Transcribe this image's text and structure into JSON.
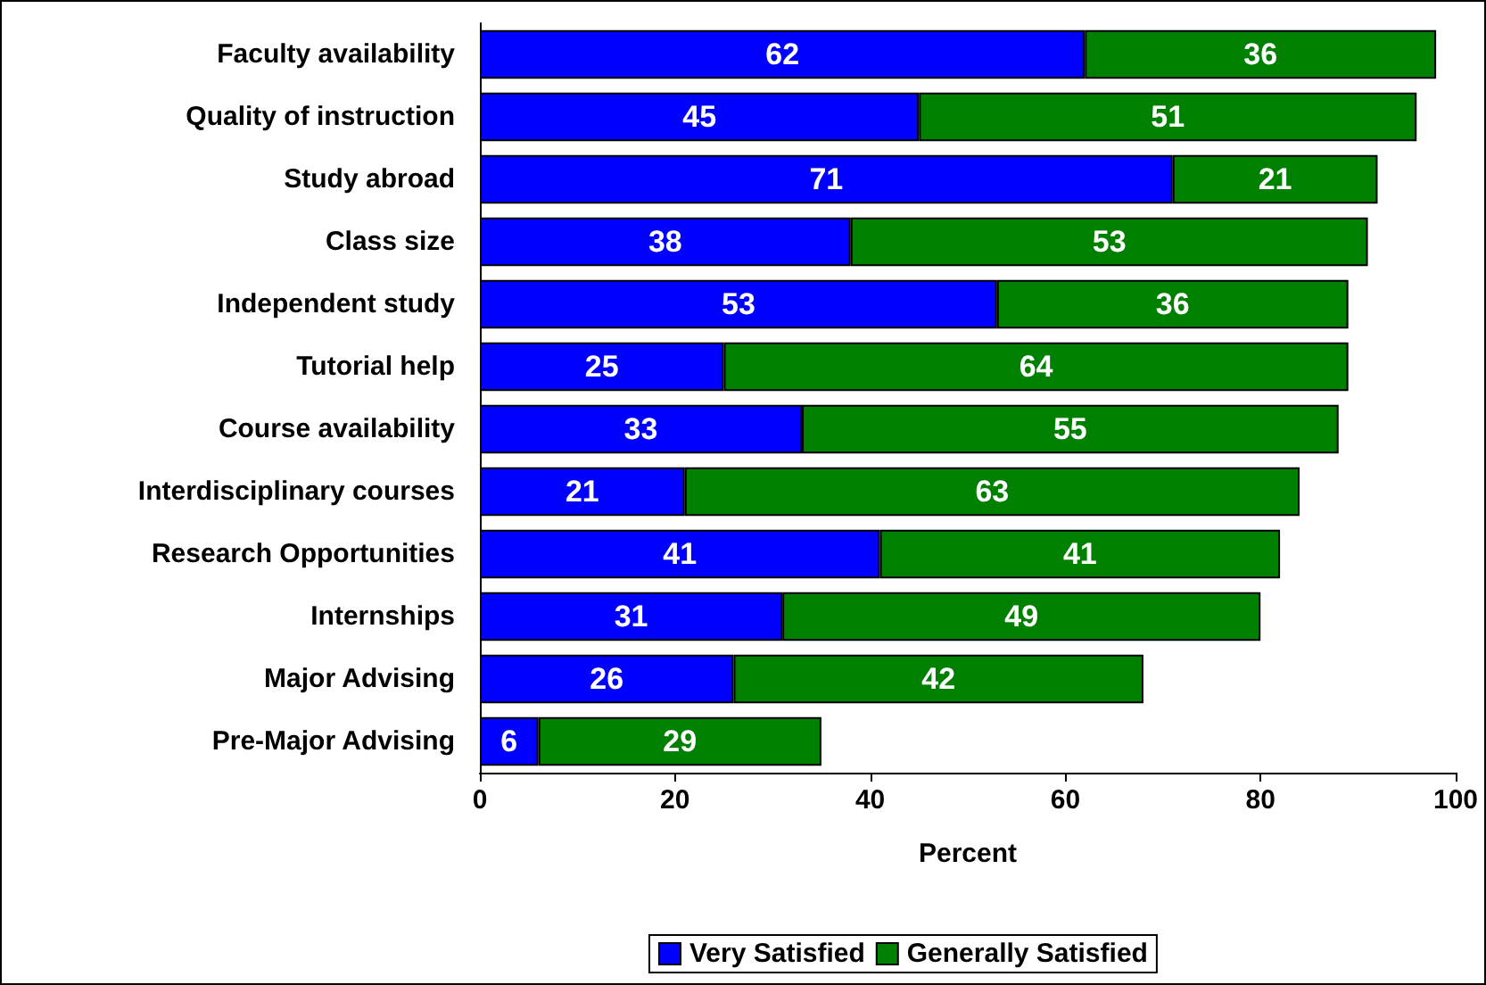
{
  "chart_data": {
    "type": "bar",
    "orientation": "horizontal",
    "stacked": true,
    "xlabel": "Percent",
    "categories": [
      "Faculty availability",
      "Quality of instruction",
      "Study abroad",
      "Class size",
      "Independent study",
      "Tutorial help",
      "Course availability",
      "Interdisciplinary courses",
      "Research Opportunities",
      "Internships",
      "Major Advising",
      "Pre-Major Advising"
    ],
    "series": [
      {
        "name": "Very Satisfied",
        "color": "#0000ff",
        "values": [
          62,
          45,
          71,
          38,
          53,
          25,
          33,
          21,
          41,
          31,
          26,
          6
        ]
      },
      {
        "name": "Generally Satisfied",
        "color": "#008000",
        "values": [
          36,
          51,
          21,
          53,
          36,
          64,
          55,
          63,
          41,
          49,
          42,
          29
        ]
      }
    ],
    "xlim": [
      0,
      100
    ],
    "xticks": [
      0,
      20,
      40,
      60,
      80,
      100
    ],
    "data_labels": true,
    "grid": false,
    "legend": "bottom"
  }
}
